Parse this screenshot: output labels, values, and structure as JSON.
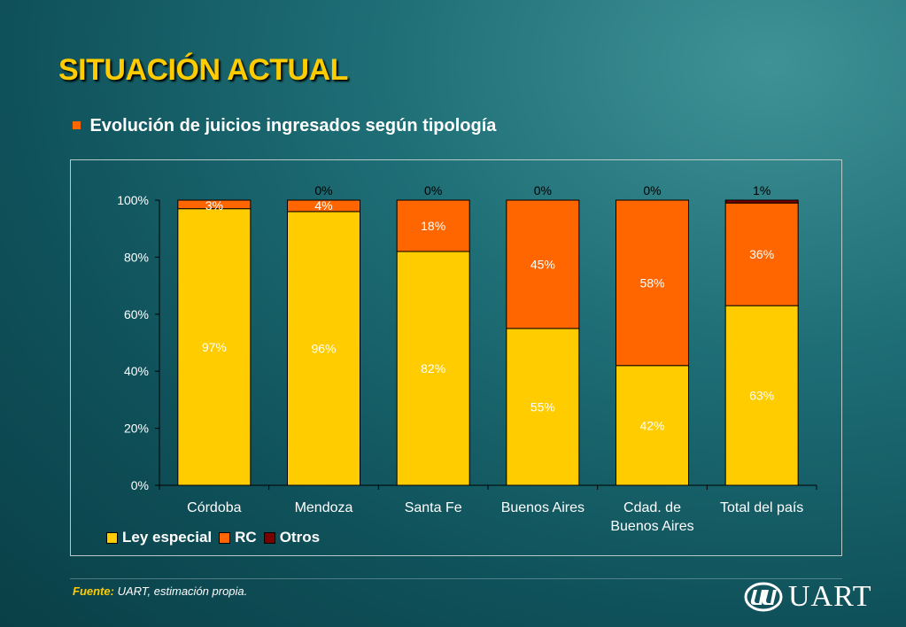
{
  "slide": {
    "title": "SITUACIÓN ACTUAL",
    "subtitle": "Evolución de juicios ingresados según tipología",
    "source_label": "Fuente:",
    "source_text": "UART, estimación propia.",
    "logo_text": "UART",
    "colors": {
      "title": "#ffcc00",
      "bullet": "#ff6600",
      "ley_especial": "#ffcc00",
      "rc": "#ff6600",
      "otros": "#7a0000"
    }
  },
  "chart_data": {
    "type": "bar",
    "stacked": true,
    "percent": true,
    "categories": [
      [
        "Córdoba"
      ],
      [
        "Mendoza"
      ],
      [
        "Santa Fe"
      ],
      [
        "Buenos Aires"
      ],
      [
        "Cdad. de",
        "Buenos Aires"
      ],
      [
        "Total del país"
      ]
    ],
    "series": [
      {
        "name": "Ley especial",
        "color": "#ffcc00",
        "values": [
          97,
          96,
          82,
          55,
          42,
          63
        ],
        "labels": [
          "97%",
          "96%",
          "82%",
          "55%",
          "42%",
          "63%"
        ],
        "label_color": "#ffffff"
      },
      {
        "name": "RC",
        "color": "#ff6600",
        "values": [
          3,
          4,
          18,
          45,
          58,
          36
        ],
        "labels": [
          "3%",
          "4%",
          "18%",
          "45%",
          "58%",
          "36%"
        ],
        "label_color": "#ffffff"
      },
      {
        "name": "Otros",
        "color": "#7a0000",
        "values": [
          0,
          0,
          0,
          0,
          0,
          1
        ],
        "labels": [
          "",
          "0%",
          "0%",
          "0%",
          "0%",
          "1%"
        ],
        "label_color": "#000000"
      }
    ],
    "y_ticks": [
      "0%",
      "20%",
      "40%",
      "60%",
      "80%",
      "100%"
    ],
    "ylim": [
      0,
      100
    ],
    "legend": "bottom-left",
    "grid": false
  }
}
